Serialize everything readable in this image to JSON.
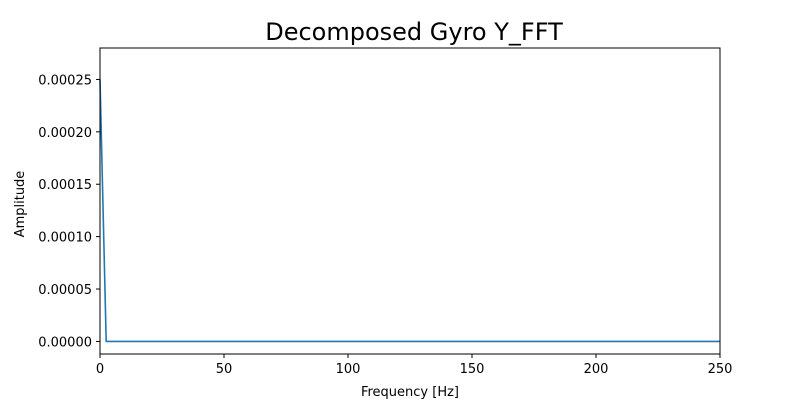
{
  "chart_data": {
    "type": "line",
    "title": "Decomposed Gyro Y_FFT",
    "xlabel": "Frequency [Hz]",
    "ylabel": "Amplitude",
    "xlim": [
      0,
      250
    ],
    "ylim": [
      -1.2e-05,
      0.00028
    ],
    "x_ticks": [
      0,
      50,
      100,
      150,
      200,
      250
    ],
    "x_tick_labels": [
      "0",
      "50",
      "100",
      "150",
      "200",
      "250"
    ],
    "y_ticks": [
      0,
      5e-05,
      0.0001,
      0.00015,
      0.0002,
      0.00025
    ],
    "y_tick_labels": [
      "0.00000",
      "0.00005",
      "0.00010",
      "0.00015",
      "0.00020",
      "0.00025"
    ],
    "grid": false,
    "series": [
      {
        "color": "#1f77b4",
        "x": [
          0,
          2.5,
          5,
          250
        ],
        "y": [
          0.00025,
          0.0,
          0.0,
          0.0
        ]
      }
    ]
  }
}
